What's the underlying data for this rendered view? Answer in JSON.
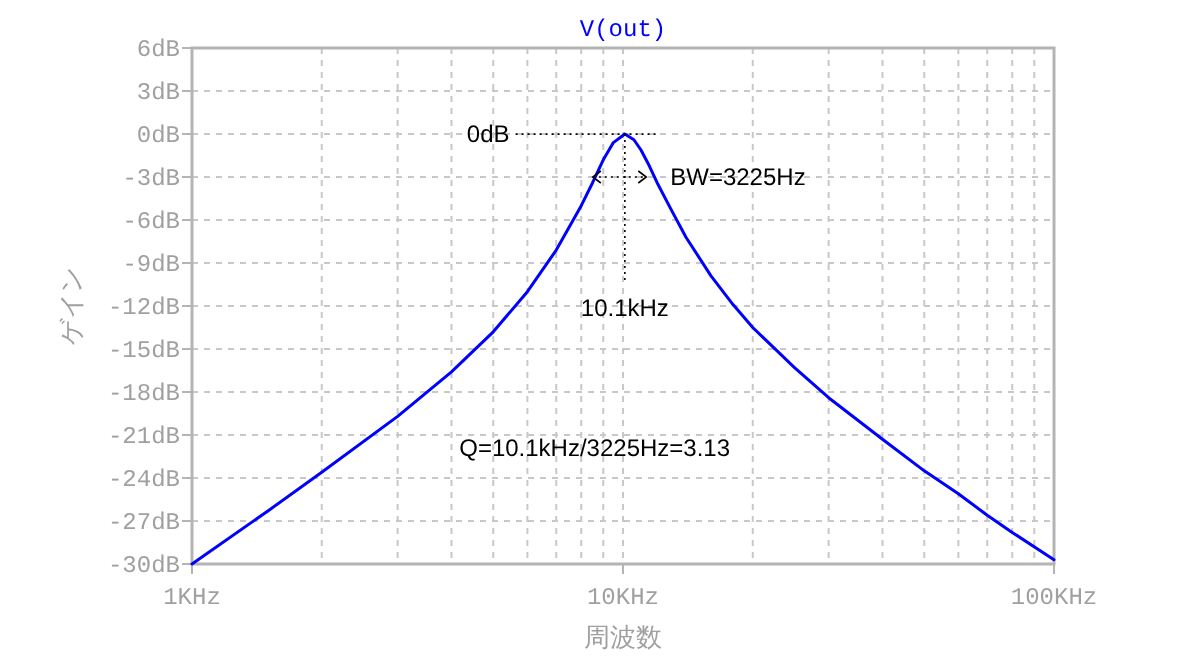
{
  "chart_data": {
    "type": "line",
    "title": "V(out)",
    "xlabel": "周波数",
    "ylabel": "ゲイン",
    "log": "x",
    "grid": true,
    "line_style": "solid",
    "xlim": [
      1,
      100
    ],
    "ylim": [
      -30,
      6
    ],
    "xticks": [
      {
        "value": 1,
        "label": "1KHz"
      },
      {
        "value": 10,
        "label": "10KHz"
      },
      {
        "value": 100,
        "label": "100KHz"
      }
    ],
    "yticks": [
      {
        "value": 6,
        "label": "6dB"
      },
      {
        "value": 3,
        "label": "3dB"
      },
      {
        "value": 0,
        "label": "0dB"
      },
      {
        "value": -3,
        "label": "-3dB"
      },
      {
        "value": -6,
        "label": "-6dB"
      },
      {
        "value": -9,
        "label": "-9dB"
      },
      {
        "value": -12,
        "label": "-12dB"
      },
      {
        "value": -15,
        "label": "-15dB"
      },
      {
        "value": -18,
        "label": "-18dB"
      },
      {
        "value": -21,
        "label": "-21dB"
      },
      {
        "value": -24,
        "label": "-24dB"
      },
      {
        "value": -27,
        "label": "-27dB"
      },
      {
        "value": -30,
        "label": "-30dB"
      }
    ],
    "x": [
      1,
      1.5,
      2,
      3,
      4,
      5,
      6,
      7,
      8,
      8.5,
      9,
      9.5,
      10.1,
      10.6,
      11,
      11.5,
      12,
      13,
      14,
      16,
      18,
      20,
      25,
      30,
      40,
      50,
      60,
      70,
      80,
      100
    ],
    "series": [
      {
        "color": "#0000ff",
        "values": [
          -30,
          -26.3,
          -23.6,
          -19.7,
          -16.6,
          -13.8,
          -11.0,
          -8.1,
          -5.0,
          -3.4,
          -1.8,
          -0.6,
          0,
          -0.4,
          -1.1,
          -2.2,
          -3.4,
          -5.4,
          -7.2,
          -9.9,
          -11.9,
          -13.5,
          -16.3,
          -18.4,
          -21.3,
          -23.5,
          -25.1,
          -26.6,
          -27.8,
          -29.7
        ]
      }
    ],
    "annotations": [
      "0dB",
      "BW=3225Hz",
      {
        "text": "10.1kHz",
        "x": 10.1,
        "y": 0
      },
      "Q=10.1kHz/3225Hz=3.13"
    ]
  }
}
